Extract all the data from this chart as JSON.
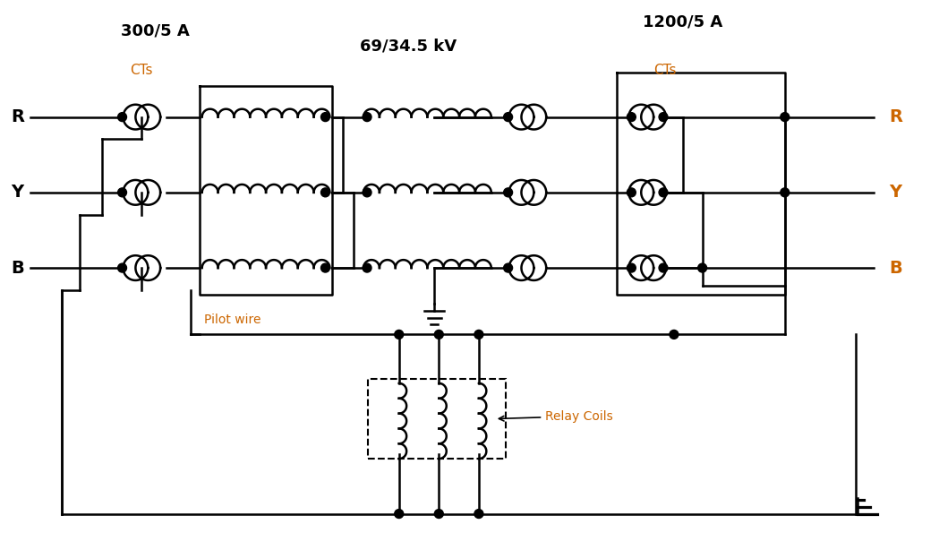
{
  "title_left": "300/5 A",
  "title_center": "69/34.5 kV",
  "title_right": "1200/5 A",
  "label_CTs_left": "CTs",
  "label_CTs_right": "CTs",
  "label_pilot": "Pilot wire",
  "label_relay": "Relay Coils",
  "bg_color": "#ffffff",
  "line_color": "#000000",
  "orange_color": "#cc6600",
  "figsize": [
    10.49,
    6.14
  ],
  "dpi": 100
}
